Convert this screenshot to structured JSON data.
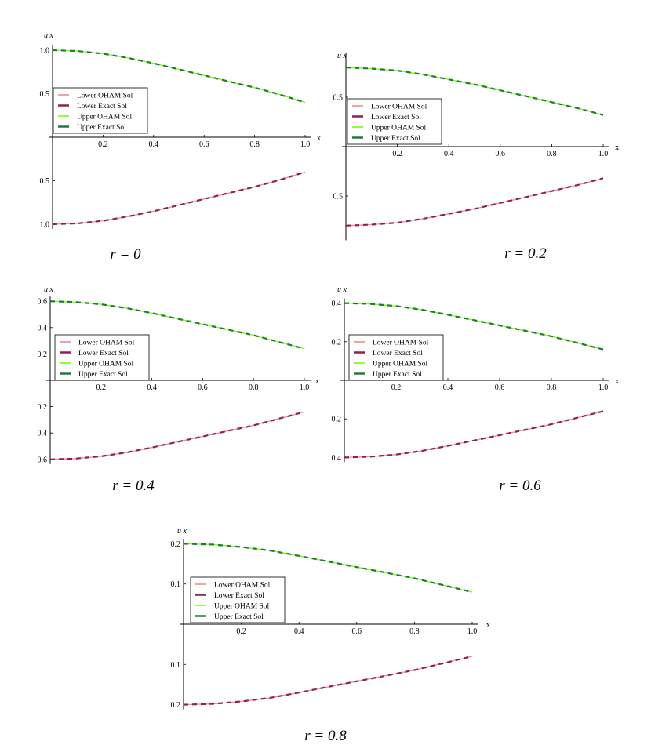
{
  "chart_data": [
    {
      "type": "line",
      "xlabel": "x",
      "ylabel": "u x",
      "xticks": [
        "0.2",
        "0.4",
        "0.6",
        "0.8",
        "1.0"
      ],
      "yticks_upper": [
        "0.5",
        "1.0"
      ],
      "yticks_lower": [
        "0.5",
        "1.0"
      ],
      "xlim": [
        0,
        1
      ],
      "ylim_upper": [
        0,
        1.0
      ],
      "ylim_lower": [
        -1.0,
        0
      ],
      "legend": "left",
      "caption": "r = 0",
      "x": [
        0,
        0.1,
        0.2,
        0.3,
        0.4,
        0.5,
        0.6,
        0.7,
        0.8,
        0.9,
        1.0
      ],
      "series": [
        {
          "name": "Lower OHAM Sol",
          "color": "#f08a8a",
          "values": [
            -1.0,
            -0.99,
            -0.96,
            -0.91,
            -0.85,
            -0.78,
            -0.71,
            -0.64,
            -0.57,
            -0.49,
            -0.4
          ]
        },
        {
          "name": "Lower Exact Sol",
          "color": "#8b2252",
          "values": [
            -1.0,
            -0.99,
            -0.96,
            -0.91,
            -0.85,
            -0.78,
            -0.71,
            -0.64,
            -0.57,
            -0.49,
            -0.4
          ]
        },
        {
          "name": "Upper OHAM Sol",
          "color": "#7cfc00",
          "values": [
            1.0,
            0.99,
            0.96,
            0.91,
            0.85,
            0.78,
            0.71,
            0.64,
            0.57,
            0.49,
            0.4
          ]
        },
        {
          "name": "Upper Exact Sol",
          "color": "#1e7a3c",
          "values": [
            1.0,
            0.99,
            0.96,
            0.91,
            0.85,
            0.78,
            0.71,
            0.64,
            0.57,
            0.49,
            0.4
          ]
        }
      ]
    },
    {
      "type": "line",
      "xlabel": "x",
      "ylabel": "u x",
      "xticks": [
        "0.2",
        "0.4",
        "0.6",
        "0.8",
        "1.0"
      ],
      "yticks_upper": [
        "0.5"
      ],
      "yticks_lower": [
        "0.5"
      ],
      "xlim": [
        0,
        1
      ],
      "ylim_upper": [
        0,
        0.9
      ],
      "ylim_lower": [
        -0.9,
        0
      ],
      "legend": "left",
      "caption": "r = 0.2",
      "x": [
        0,
        0.1,
        0.2,
        0.3,
        0.4,
        0.5,
        0.6,
        0.7,
        0.8,
        0.9,
        1.0
      ],
      "series": [
        {
          "name": "Lower OHAM Sol",
          "color": "#f08a8a",
          "values": [
            -0.8,
            -0.79,
            -0.77,
            -0.73,
            -0.68,
            -0.63,
            -0.57,
            -0.51,
            -0.45,
            -0.39,
            -0.32
          ]
        },
        {
          "name": "Lower Exact Sol",
          "color": "#8b2252",
          "values": [
            -0.8,
            -0.79,
            -0.77,
            -0.73,
            -0.68,
            -0.63,
            -0.57,
            -0.51,
            -0.45,
            -0.39,
            -0.32
          ]
        },
        {
          "name": "Upper OHAM Sol",
          "color": "#7cfc00",
          "values": [
            0.8,
            0.79,
            0.77,
            0.73,
            0.68,
            0.63,
            0.57,
            0.51,
            0.45,
            0.39,
            0.32
          ]
        },
        {
          "name": "Upper Exact Sol",
          "color": "#1e7a3c",
          "values": [
            0.8,
            0.79,
            0.77,
            0.73,
            0.68,
            0.63,
            0.57,
            0.51,
            0.45,
            0.39,
            0.32
          ]
        }
      ]
    },
    {
      "type": "line",
      "xlabel": "x",
      "ylabel": "u x",
      "xticks": [
        "0.2",
        "0.4",
        "0.6",
        "0.8",
        "1.0"
      ],
      "yticks_upper": [
        "0.2",
        "0.4",
        "0.6"
      ],
      "yticks_lower": [
        "0.2",
        "0.4",
        "0.6"
      ],
      "xlim": [
        0,
        1
      ],
      "ylim_upper": [
        0,
        0.6
      ],
      "ylim_lower": [
        -0.6,
        0
      ],
      "legend": "left",
      "caption": "r = 0.4",
      "x": [
        0,
        0.1,
        0.2,
        0.3,
        0.4,
        0.5,
        0.6,
        0.7,
        0.8,
        0.9,
        1.0
      ],
      "series": [
        {
          "name": "Lower OHAM Sol",
          "color": "#f08a8a",
          "values": [
            -0.6,
            -0.594,
            -0.577,
            -0.548,
            -0.51,
            -0.468,
            -0.426,
            -0.384,
            -0.342,
            -0.291,
            -0.24
          ]
        },
        {
          "name": "Lower Exact Sol",
          "color": "#8b2252",
          "values": [
            -0.6,
            -0.594,
            -0.577,
            -0.548,
            -0.51,
            -0.468,
            -0.426,
            -0.384,
            -0.342,
            -0.291,
            -0.24
          ]
        },
        {
          "name": "Upper OHAM Sol",
          "color": "#7cfc00",
          "values": [
            0.6,
            0.594,
            0.577,
            0.548,
            0.51,
            0.468,
            0.426,
            0.384,
            0.342,
            0.291,
            0.24
          ]
        },
        {
          "name": "Upper Exact Sol",
          "color": "#1e7a3c",
          "values": [
            0.6,
            0.594,
            0.577,
            0.548,
            0.51,
            0.468,
            0.426,
            0.384,
            0.342,
            0.291,
            0.24
          ]
        }
      ]
    },
    {
      "type": "line",
      "xlabel": "x",
      "ylabel": "u x",
      "xticks": [
        "0.2",
        "0.4",
        "0.6",
        "0.8",
        "1.0"
      ],
      "yticks_upper": [
        "0.2",
        "0.4"
      ],
      "yticks_lower": [
        "0.2",
        "0.4"
      ],
      "xlim": [
        0,
        1
      ],
      "ylim_upper": [
        0,
        0.4
      ],
      "ylim_lower": [
        -0.4,
        0
      ],
      "legend": "left",
      "caption": "r = 0.6",
      "x": [
        0,
        0.1,
        0.2,
        0.3,
        0.4,
        0.5,
        0.6,
        0.7,
        0.8,
        0.9,
        1.0
      ],
      "series": [
        {
          "name": "Lower OHAM Sol",
          "color": "#f08a8a",
          "values": [
            -0.4,
            -0.396,
            -0.385,
            -0.366,
            -0.34,
            -0.312,
            -0.284,
            -0.256,
            -0.228,
            -0.194,
            -0.16
          ]
        },
        {
          "name": "Lower Exact Sol",
          "color": "#8b2252",
          "values": [
            -0.4,
            -0.396,
            -0.385,
            -0.366,
            -0.34,
            -0.312,
            -0.284,
            -0.256,
            -0.228,
            -0.194,
            -0.16
          ]
        },
        {
          "name": "Upper OHAM Sol",
          "color": "#7cfc00",
          "values": [
            0.4,
            0.396,
            0.385,
            0.366,
            0.34,
            0.312,
            0.284,
            0.256,
            0.228,
            0.194,
            0.16
          ]
        },
        {
          "name": "Upper Exact Sol",
          "color": "#1e7a3c",
          "values": [
            0.4,
            0.396,
            0.385,
            0.366,
            0.34,
            0.312,
            0.284,
            0.256,
            0.228,
            0.194,
            0.16
          ]
        }
      ]
    },
    {
      "type": "line",
      "xlabel": "x",
      "ylabel": "u x",
      "xticks": [
        "0.2",
        "0.4",
        "0.6",
        "0.8",
        "1.0"
      ],
      "yticks_upper": [
        "0.1",
        "0.2"
      ],
      "yticks_lower": [
        "0.1",
        "0.2"
      ],
      "xlim": [
        0,
        1
      ],
      "ylim_upper": [
        0,
        0.2
      ],
      "ylim_lower": [
        -0.2,
        0
      ],
      "legend": "left",
      "caption": "r = 0.8",
      "x": [
        0,
        0.1,
        0.2,
        0.3,
        0.4,
        0.5,
        0.6,
        0.7,
        0.8,
        0.9,
        1.0
      ],
      "series": [
        {
          "name": "Lower OHAM Sol",
          "color": "#f08a8a",
          "values": [
            -0.2,
            -0.198,
            -0.192,
            -0.183,
            -0.17,
            -0.156,
            -0.142,
            -0.128,
            -0.114,
            -0.097,
            -0.08
          ]
        },
        {
          "name": "Lower Exact Sol",
          "color": "#8b2252",
          "values": [
            -0.2,
            -0.198,
            -0.192,
            -0.183,
            -0.17,
            -0.156,
            -0.142,
            -0.128,
            -0.114,
            -0.097,
            -0.08
          ]
        },
        {
          "name": "Upper OHAM Sol",
          "color": "#7cfc00",
          "values": [
            0.2,
            0.198,
            0.192,
            0.183,
            0.17,
            0.156,
            0.142,
            0.128,
            0.114,
            0.097,
            0.08
          ]
        },
        {
          "name": "Upper Exact Sol",
          "color": "#1e7a3c",
          "values": [
            0.2,
            0.198,
            0.192,
            0.183,
            0.17,
            0.156,
            0.142,
            0.128,
            0.114,
            0.097,
            0.08
          ]
        }
      ]
    }
  ]
}
